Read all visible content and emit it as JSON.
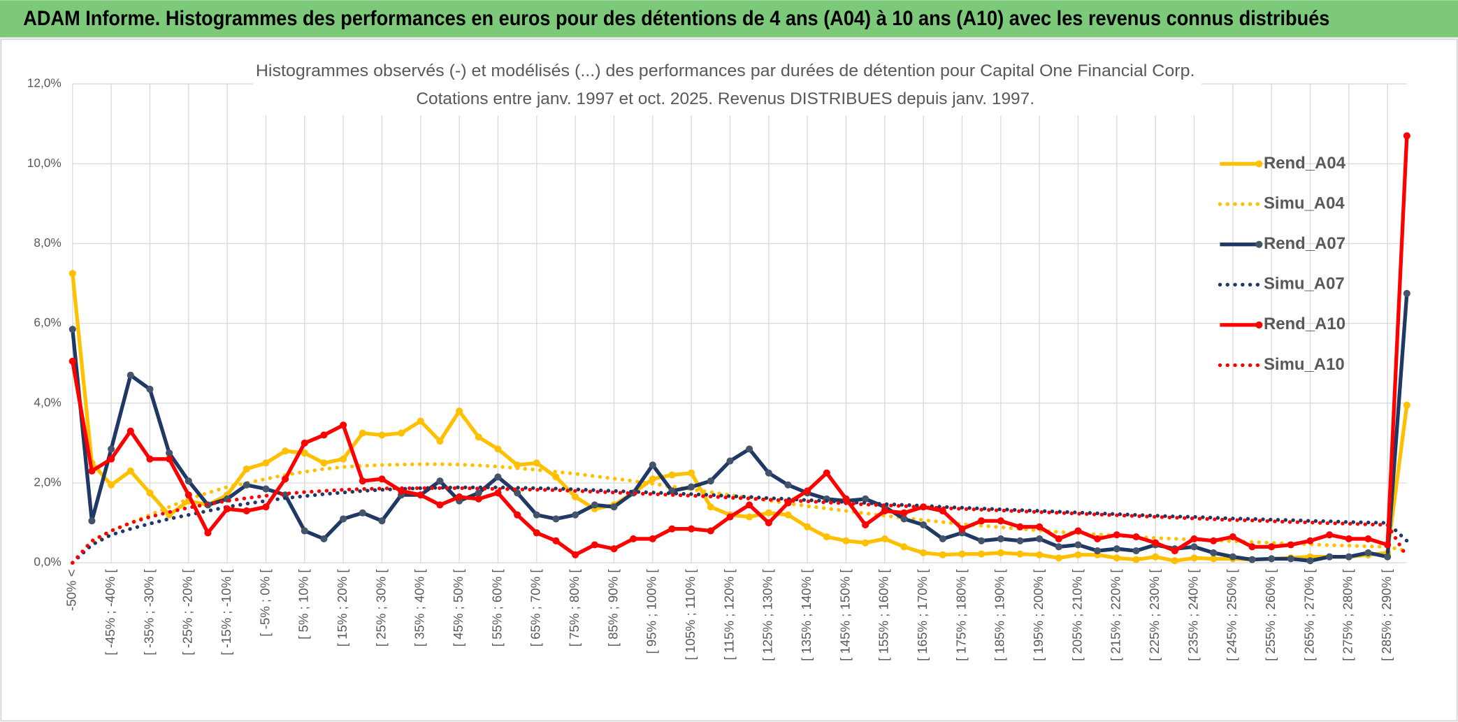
{
  "header": {
    "title": "ADAM Informe. Histogrammes des performances en euros pour des détentions de 4 ans (A04) à 10 ans (A10) avec les revenus connus distribués"
  },
  "chart_data": {
    "type": "line",
    "title": "Histogrammes observés (-) et modélisés (...) des performances par durées de détention pour Capital One Financial Corp.",
    "subtitle": "Cotations entre janv. 1997 et oct. 2025. Revenus DISTRIBUES depuis janv. 1997.",
    "categories": [
      "-50% <",
      null,
      "[ -45% ; -40% [",
      null,
      "[ -35% ; -30% [",
      null,
      "[ -25% ; -20% [",
      null,
      "[ -15% ; -10% [",
      null,
      "[ -5% ; 0% [",
      null,
      "[ 5% ; 10% [",
      null,
      "[ 15% ; 20% [",
      null,
      "[ 25% ; 30% [",
      null,
      "[ 35% ; 40% [",
      null,
      "[ 45% ; 50% [",
      null,
      "[ 55% ; 60% [",
      null,
      "[ 65% ; 70% [",
      null,
      "[ 75% ; 80% [",
      null,
      "[ 85% ; 90% [",
      null,
      "[ 95% ; 100% [",
      null,
      "[ 105% ; 110% [",
      null,
      "[ 115% ; 120% [",
      null,
      "[ 125% ; 130% [",
      null,
      "[ 135% ; 140% [",
      null,
      "[ 145% ; 150% [",
      null,
      "[ 155% ; 160% [",
      null,
      "[ 165% ; 170% [",
      null,
      "[ 175% ; 180% [",
      null,
      "[ 185% ; 190% [",
      null,
      "[ 195% ; 200% [",
      null,
      "[ 205% ; 210% [",
      null,
      "[ 215% ; 220% [",
      null,
      "[ 225% ; 230% [",
      null,
      "[ 235% ; 240% [",
      null,
      "[ 245% ; 250% [",
      null,
      "[ 255% ; 260% [",
      null,
      "[ 265% ; 270% [",
      null,
      "[ 275% ; 280% [",
      null,
      "[ 285% ; 290% [",
      null
    ],
    "ylim": [
      0,
      12
    ],
    "yticks": [
      {
        "value": 0,
        "label": "0,0%"
      },
      {
        "value": 2,
        "label": "2,0%"
      },
      {
        "value": 4,
        "label": "4,0%"
      },
      {
        "value": 6,
        "label": "6,0%"
      },
      {
        "value": 8,
        "label": "8,0%"
      },
      {
        "value": 10,
        "label": "10,0%"
      },
      {
        "value": 12,
        "label": "12,0%"
      }
    ],
    "grid": true,
    "legend": "right",
    "series": [
      {
        "name": "Rend_A04",
        "color": "#ffc000",
        "style": "solid",
        "values": [
          7.25,
          2.5,
          1.95,
          2.3,
          1.75,
          1.2,
          1.55,
          1.45,
          1.7,
          2.35,
          2.5,
          2.8,
          2.75,
          2.5,
          2.6,
          3.25,
          3.2,
          3.25,
          3.55,
          3.05,
          3.8,
          3.15,
          2.85,
          2.45,
          2.5,
          2.15,
          1.65,
          1.35,
          1.45,
          1.75,
          2.1,
          2.2,
          2.25,
          1.4,
          1.2,
          1.15,
          1.25,
          1.2,
          0.9,
          0.65,
          0.55,
          0.5,
          0.6,
          0.4,
          0.25,
          0.2,
          0.22,
          0.22,
          0.25,
          0.22,
          0.2,
          0.12,
          0.2,
          0.2,
          0.12,
          0.08,
          0.15,
          0.05,
          0.12,
          0.1,
          0.1,
          0.08,
          0.1,
          0.12,
          0.15,
          0.15,
          0.15,
          0.2,
          0.25,
          3.95
        ]
      },
      {
        "name": "Simu_A04",
        "color": "#ffc000",
        "style": "dotted",
        "values": [
          0,
          0.5,
          0.8,
          1.0,
          1.2,
          1.4,
          1.6,
          1.75,
          1.9,
          2.0,
          2.1,
          2.2,
          2.28,
          2.35,
          2.4,
          2.43,
          2.45,
          2.46,
          2.47,
          2.47,
          2.46,
          2.44,
          2.41,
          2.37,
          2.33,
          2.28,
          2.23,
          2.17,
          2.11,
          2.05,
          1.98,
          1.91,
          1.84,
          1.77,
          1.7,
          1.63,
          1.56,
          1.49,
          1.42,
          1.36,
          1.3,
          1.24,
          1.18,
          1.12,
          1.07,
          1.02,
          0.97,
          0.93,
          0.89,
          0.85,
          0.81,
          0.77,
          0.74,
          0.71,
          0.68,
          0.65,
          0.62,
          0.6,
          0.58,
          0.56,
          0.54,
          0.52,
          0.5,
          0.48,
          0.46,
          0.44,
          0.43,
          0.41,
          0.4,
          0.3
        ]
      },
      {
        "name": "Rend_A07",
        "color": "#1f3864",
        "style": "solid",
        "values": [
          5.85,
          1.05,
          2.85,
          4.7,
          4.35,
          2.75,
          2.05,
          1.45,
          1.6,
          1.95,
          1.85,
          1.7,
          0.8,
          0.6,
          1.1,
          1.25,
          1.05,
          1.7,
          1.7,
          2.05,
          1.55,
          1.75,
          2.15,
          1.75,
          1.2,
          1.1,
          1.2,
          1.45,
          1.4,
          1.75,
          2.45,
          1.8,
          1.9,
          2.05,
          2.55,
          2.85,
          2.25,
          1.95,
          1.75,
          1.6,
          1.55,
          1.6,
          1.4,
          1.1,
          0.95,
          0.6,
          0.75,
          0.55,
          0.6,
          0.55,
          0.6,
          0.4,
          0.45,
          0.3,
          0.35,
          0.3,
          0.45,
          0.35,
          0.4,
          0.25,
          0.15,
          0.08,
          0.1,
          0.1,
          0.05,
          0.15,
          0.15,
          0.25,
          0.15,
          6.75
        ]
      },
      {
        "name": "Simu_A07",
        "color": "#1f3864",
        "style": "dotted",
        "values": [
          0,
          0.45,
          0.7,
          0.85,
          0.98,
          1.1,
          1.2,
          1.3,
          1.4,
          1.48,
          1.55,
          1.62,
          1.67,
          1.72,
          1.76,
          1.8,
          1.83,
          1.85,
          1.87,
          1.88,
          1.89,
          1.89,
          1.89,
          1.88,
          1.87,
          1.86,
          1.84,
          1.82,
          1.8,
          1.78,
          1.76,
          1.74,
          1.72,
          1.7,
          1.67,
          1.65,
          1.62,
          1.6,
          1.57,
          1.55,
          1.52,
          1.5,
          1.47,
          1.45,
          1.43,
          1.4,
          1.38,
          1.36,
          1.34,
          1.32,
          1.3,
          1.28,
          1.26,
          1.24,
          1.22,
          1.2,
          1.18,
          1.16,
          1.15,
          1.13,
          1.11,
          1.1,
          1.08,
          1.07,
          1.05,
          1.04,
          1.02,
          1.01,
          1.0,
          0.55
        ]
      },
      {
        "name": "Rend_A10",
        "color": "#ff0000",
        "style": "solid",
        "values": [
          5.05,
          2.3,
          2.6,
          3.3,
          2.6,
          2.6,
          1.7,
          0.75,
          1.35,
          1.3,
          1.4,
          2.1,
          3.0,
          3.2,
          3.45,
          2.05,
          2.1,
          1.8,
          1.7,
          1.45,
          1.65,
          1.6,
          1.75,
          1.2,
          0.75,
          0.55,
          0.2,
          0.45,
          0.35,
          0.6,
          0.6,
          0.85,
          0.85,
          0.8,
          1.15,
          1.45,
          1.0,
          1.5,
          1.8,
          2.25,
          1.6,
          0.95,
          1.3,
          1.25,
          1.4,
          1.3,
          0.85,
          1.05,
          1.05,
          0.9,
          0.9,
          0.6,
          0.8,
          0.6,
          0.7,
          0.65,
          0.5,
          0.3,
          0.6,
          0.55,
          0.65,
          0.4,
          0.4,
          0.45,
          0.55,
          0.7,
          0.6,
          0.6,
          0.45,
          10.7
        ]
      },
      {
        "name": "Simu_A10",
        "color": "#ff0000",
        "style": "dotted",
        "values": [
          0,
          0.55,
          0.8,
          1.0,
          1.15,
          1.27,
          1.38,
          1.47,
          1.55,
          1.62,
          1.68,
          1.73,
          1.77,
          1.8,
          1.83,
          1.85,
          1.86,
          1.87,
          1.87,
          1.87,
          1.87,
          1.86,
          1.85,
          1.84,
          1.83,
          1.82,
          1.8,
          1.78,
          1.76,
          1.74,
          1.72,
          1.7,
          1.68,
          1.66,
          1.63,
          1.61,
          1.58,
          1.56,
          1.54,
          1.51,
          1.49,
          1.46,
          1.44,
          1.42,
          1.39,
          1.37,
          1.35,
          1.33,
          1.31,
          1.29,
          1.27,
          1.25,
          1.23,
          1.21,
          1.19,
          1.17,
          1.15,
          1.13,
          1.11,
          1.09,
          1.07,
          1.06,
          1.04,
          1.02,
          1.01,
          0.99,
          0.98,
          0.96,
          0.95,
          0.15
        ]
      }
    ]
  }
}
